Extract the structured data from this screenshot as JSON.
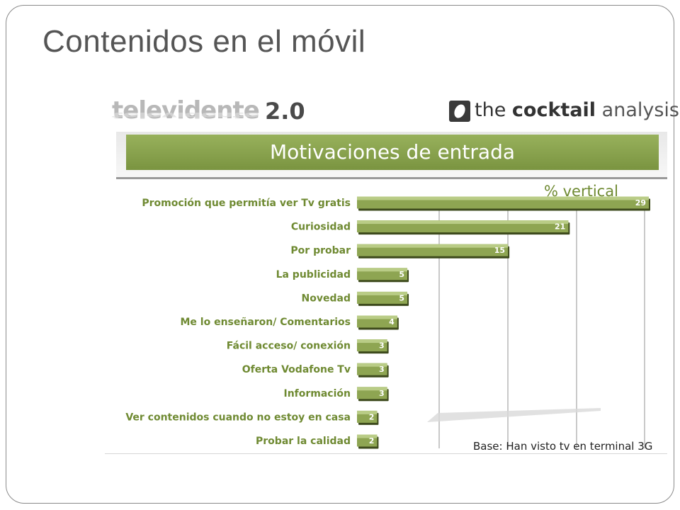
{
  "slide": {
    "title": "Contenidos en el móvil"
  },
  "branding": {
    "left_logo_text": "televidente",
    "left_logo_version": "2.0",
    "right_logo_the": "the",
    "right_logo_bold": "cocktail",
    "right_logo_light": "analysis"
  },
  "colors": {
    "bar_fill": "#8ea552",
    "bar_top": "#b9cc86",
    "label_color": "#6f8a32",
    "banner": "#86a04a"
  },
  "chart_data": {
    "type": "bar",
    "orientation": "horizontal",
    "title": "Motivaciones de entrada",
    "unit_label": "% vertical",
    "base_note": "Base: Han visto tv en terminal 3G",
    "grid": true,
    "xlim": [
      0,
      30
    ],
    "categories": [
      "Promoción que permitía ver Tv gratis",
      "Curiosidad",
      "Por probar",
      "La publicidad",
      "Novedad",
      "Me lo enseñaron/ Comentarios",
      "Fácil acceso/ conexión",
      "Oferta Vodafone Tv",
      "Información",
      "Ver contenidos cuando no estoy en casa",
      "Probar la calidad"
    ],
    "values": [
      29,
      21,
      15,
      5,
      5,
      4,
      3,
      3,
      3,
      2,
      2
    ]
  }
}
